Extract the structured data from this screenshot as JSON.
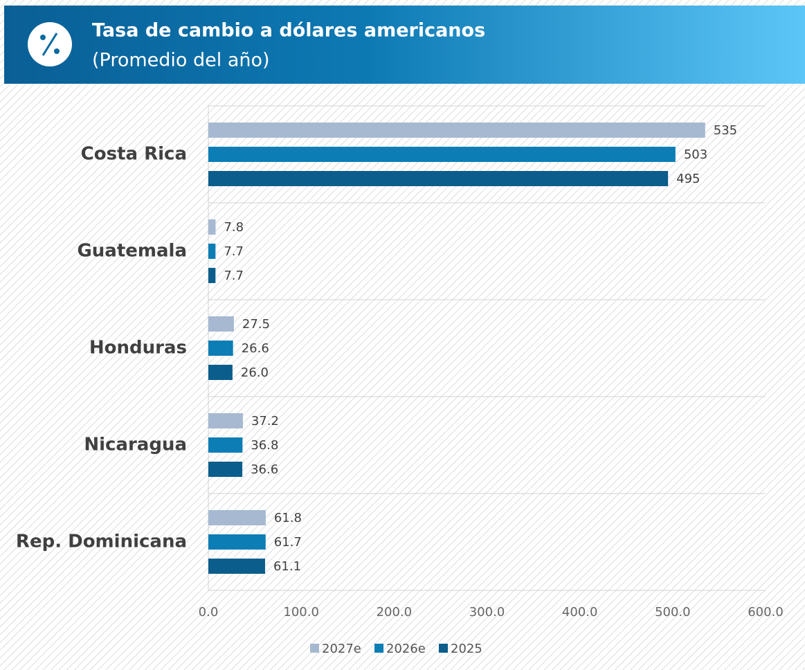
{
  "chart_data": {
    "type": "bar",
    "orientation": "horizontal",
    "title": "Tasa de cambio a dólares americanos",
    "subtitle": "(Promedio del año)",
    "categories": [
      "Costa Rica",
      "Guatemala",
      "Honduras",
      "Nicaragua",
      "Rep. Dominicana"
    ],
    "series": [
      {
        "name": "2027e",
        "color": "#a6b9d1",
        "values": [
          535,
          7.8,
          27.5,
          37.2,
          61.8
        ],
        "value_labels": [
          "535",
          "7.8",
          "27.5",
          "37.2",
          "61.8"
        ]
      },
      {
        "name": "2026e",
        "color": "#0d7db5",
        "values": [
          503,
          7.7,
          26.6,
          36.8,
          61.7
        ],
        "value_labels": [
          "503",
          "7.7",
          "26.6",
          "36.8",
          "61.7"
        ]
      },
      {
        "name": "2025",
        "color": "#0b5e8b",
        "values": [
          495,
          7.7,
          26.0,
          36.6,
          61.1
        ],
        "value_labels": [
          "495",
          "7.7",
          "26.0",
          "36.6",
          "61.1"
        ]
      }
    ],
    "xlim": [
      0,
      600
    ],
    "xticks": [
      {
        "value": 0,
        "label": "0.0"
      },
      {
        "value": 100,
        "label": "100.0"
      },
      {
        "value": 200,
        "label": "200.0"
      },
      {
        "value": 300,
        "label": "300.0"
      },
      {
        "value": 400,
        "label": "400.0"
      },
      {
        "value": 500,
        "label": "500.0"
      },
      {
        "value": 600,
        "label": "600.0"
      }
    ],
    "legend": "bottom"
  }
}
